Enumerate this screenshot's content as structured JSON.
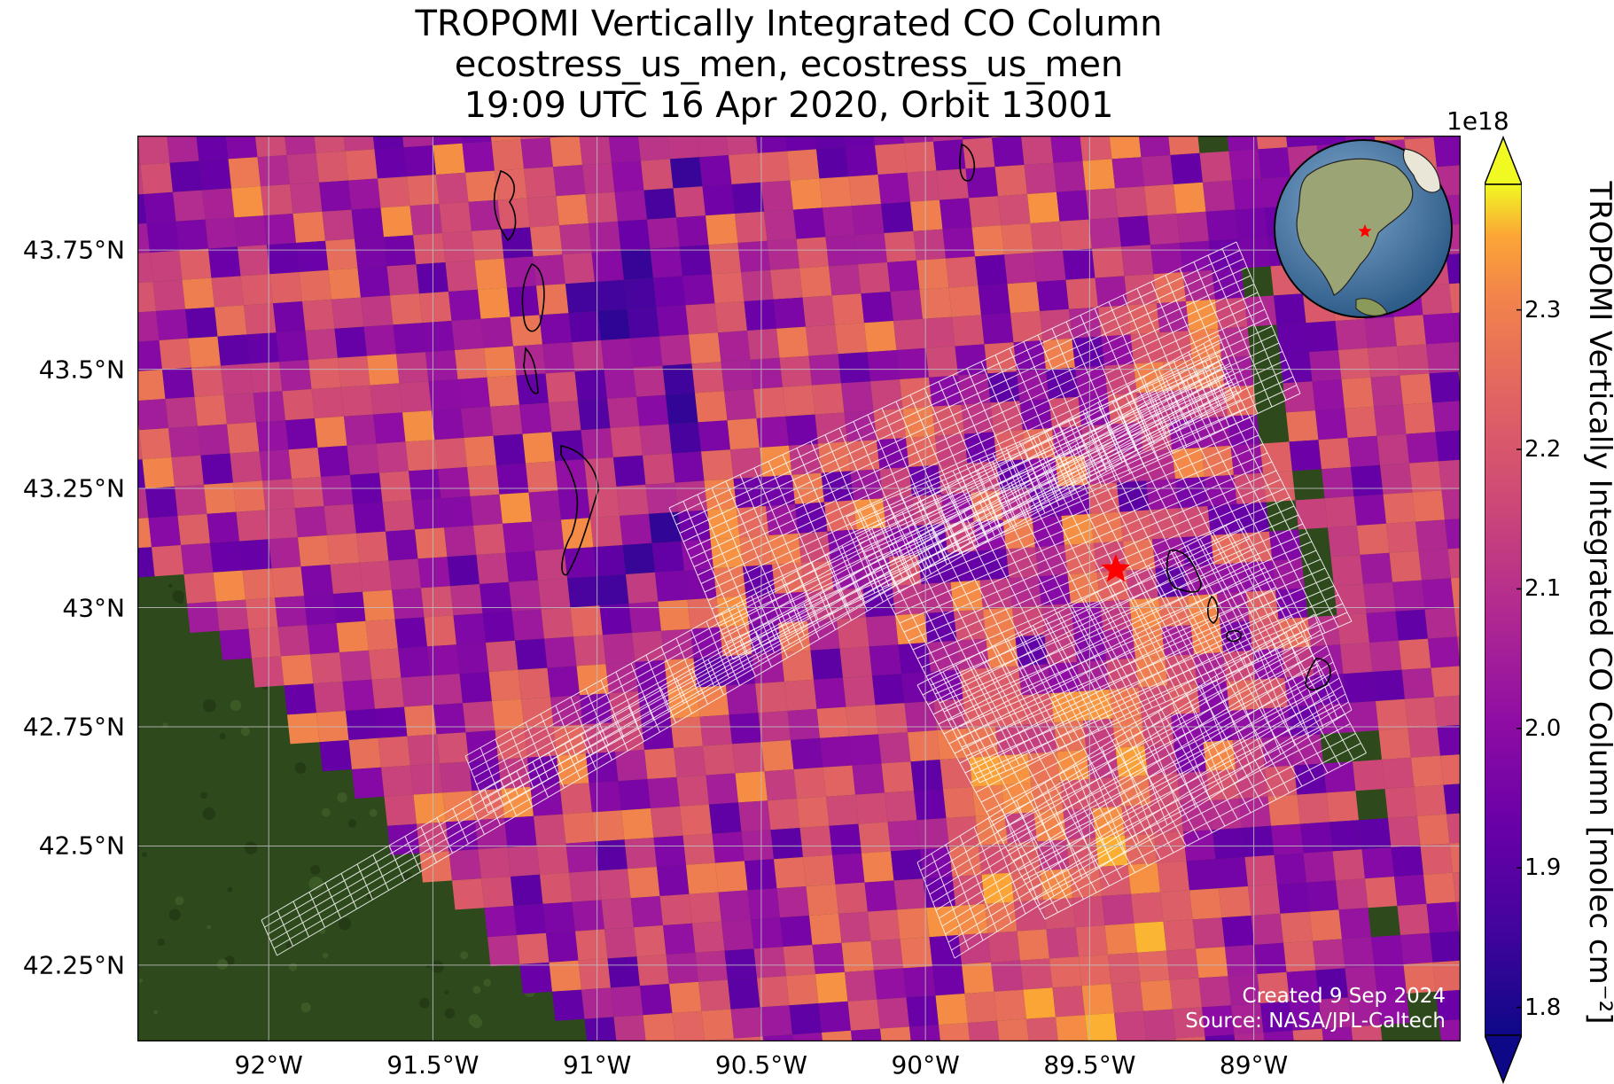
{
  "title": {
    "line1": "TROPOMI Vertically Integrated CO Column",
    "line2": "ecostress_us_men, ecostress_us_men",
    "line3": "19:09 UTC 16 Apr 2020, Orbit 13001"
  },
  "map": {
    "lon_range": [
      -92.4,
      -88.37
    ],
    "lat_range": [
      42.09,
      43.99
    ],
    "lat_ticks": [
      {
        "value": 43.75,
        "label": "43.75°N"
      },
      {
        "value": 43.5,
        "label": "43.5°N"
      },
      {
        "value": 43.25,
        "label": "43.25°N"
      },
      {
        "value": 43.0,
        "label": "43°N"
      },
      {
        "value": 42.75,
        "label": "42.75°N"
      },
      {
        "value": 42.5,
        "label": "42.5°N"
      },
      {
        "value": 42.25,
        "label": "42.25°N"
      }
    ],
    "lon_ticks": [
      {
        "value": -92.0,
        "label": "92°W"
      },
      {
        "value": -91.5,
        "label": "91.5°W"
      },
      {
        "value": -91.0,
        "label": "91°W"
      },
      {
        "value": -90.5,
        "label": "90.5°W"
      },
      {
        "value": -90.0,
        "label": "90°W"
      },
      {
        "value": -89.5,
        "label": "89.5°W"
      },
      {
        "value": -89.0,
        "label": "89°W"
      }
    ],
    "site_marker": {
      "lon": -89.42,
      "lat": 43.08,
      "color": "#ff0000"
    },
    "basemap_color": "#2e4a1c",
    "colormap": "plasma",
    "inset_globe": {
      "ocean_color": "#4a7fb0",
      "land_color": "#8a9a6a",
      "marker_color": "#ff0000"
    }
  },
  "footer": {
    "created": "Created 9 Sep 2024",
    "source": "Source: NASA/JPL-Caltech"
  },
  "colorbar": {
    "label": "TROPOMI Vertically Integrated CO Column [molec cm⁻²]",
    "exponent": "1e18",
    "range": [
      1.78,
      2.39
    ],
    "ticks": [
      {
        "value": 1.8,
        "label": "1.8"
      },
      {
        "value": 1.9,
        "label": "1.9"
      },
      {
        "value": 2.0,
        "label": "2.0"
      },
      {
        "value": 2.1,
        "label": "2.1"
      },
      {
        "value": 2.2,
        "label": "2.2"
      },
      {
        "value": 2.3,
        "label": "2.3"
      }
    ],
    "extend": "both"
  }
}
